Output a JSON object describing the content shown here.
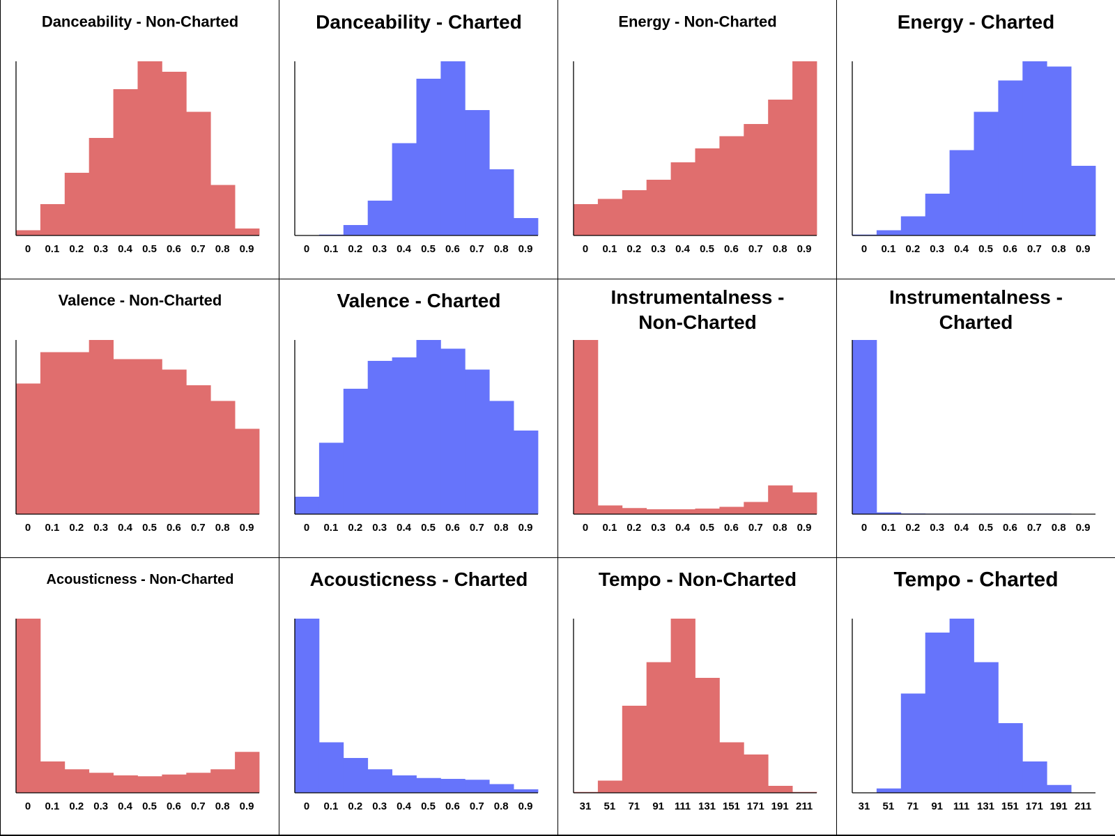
{
  "colors": {
    "non_charted": "#e06e6e",
    "charted": "#6674fb",
    "axis": "#000000"
  },
  "chart_data": [
    {
      "type": "bar",
      "title": "Danceability - Non-Charted",
      "color": "#e06e6e",
      "categories": [
        "0",
        "0.1",
        "0.2",
        "0.3",
        "0.4",
        "0.5",
        "0.6",
        "0.7",
        "0.8",
        "0.9"
      ],
      "values": [
        3,
        18,
        36,
        56,
        84,
        100,
        94,
        71,
        29,
        4
      ],
      "ylim": [
        0,
        100
      ]
    },
    {
      "type": "bar",
      "title": "Danceability - Charted",
      "color": "#6674fb",
      "categories": [
        "0",
        "0.1",
        "0.2",
        "0.3",
        "0.4",
        "0.5",
        "0.6",
        "0.7",
        "0.8",
        "0.9"
      ],
      "values": [
        0,
        0.5,
        6,
        20,
        53,
        90,
        100,
        72,
        38,
        10
      ],
      "ylim": [
        0,
        100
      ]
    },
    {
      "type": "bar",
      "title": "Energy - Non-Charted",
      "color": "#e06e6e",
      "categories": [
        "0",
        "0.1",
        "0.2",
        "0.3",
        "0.4",
        "0.5",
        "0.6",
        "0.7",
        "0.8",
        "0.9"
      ],
      "values": [
        18,
        21,
        26,
        32,
        42,
        50,
        57,
        64,
        78,
        100
      ],
      "ylim": [
        0,
        100
      ]
    },
    {
      "type": "bar",
      "title": "Energy - Charted",
      "color": "#6674fb",
      "categories": [
        "0",
        "0.1",
        "0.2",
        "0.3",
        "0.4",
        "0.5",
        "0.6",
        "0.7",
        "0.8",
        "0.9"
      ],
      "values": [
        0.5,
        3,
        11,
        24,
        49,
        71,
        89,
        100,
        97,
        40
      ],
      "ylim": [
        0,
        100
      ]
    },
    {
      "type": "bar",
      "title": "Valence - Non-Charted",
      "color": "#e06e6e",
      "categories": [
        "0",
        "0.1",
        "0.2",
        "0.3",
        "0.4",
        "0.5",
        "0.6",
        "0.7",
        "0.8",
        "0.9"
      ],
      "values": [
        75,
        93,
        93,
        100,
        89,
        89,
        83,
        74,
        65,
        49
      ],
      "ylim": [
        0,
        100
      ]
    },
    {
      "type": "bar",
      "title": "Valence - Charted",
      "color": "#6674fb",
      "categories": [
        "0",
        "0.1",
        "0.2",
        "0.3",
        "0.4",
        "0.5",
        "0.6",
        "0.7",
        "0.8",
        "0.9"
      ],
      "values": [
        10,
        41,
        72,
        88,
        90,
        100,
        95,
        83,
        65,
        48
      ],
      "ylim": [
        0,
        100
      ]
    },
    {
      "type": "bar",
      "title": "Instrumentalness - Non-Charted",
      "color": "#e06e6e",
      "categories": [
        "0",
        "0.1",
        "0.2",
        "0.3",
        "0.4",
        "0.5",
        "0.6",
        "0.7",
        "0.8",
        "0.9"
      ],
      "values": [
        100,
        5,
        3.5,
        2.8,
        2.8,
        3.2,
        4.2,
        7,
        16.5,
        12.5
      ],
      "ylim": [
        0,
        100
      ]
    },
    {
      "type": "bar",
      "title": "Instrumentalness - Charted",
      "color": "#6674fb",
      "categories": [
        "0",
        "0.1",
        "0.2",
        "0.3",
        "0.4",
        "0.5",
        "0.6",
        "0.7",
        "0.8",
        "0.9"
      ],
      "values": [
        100,
        1,
        0.4,
        0.3,
        0.3,
        0.3,
        0.3,
        0.3,
        0.3,
        0
      ],
      "ylim": [
        0,
        100
      ]
    },
    {
      "type": "bar",
      "title": "Acousticness - Non-Charted",
      "color": "#e06e6e",
      "categories": [
        "0",
        "0.1",
        "0.2",
        "0.3",
        "0.4",
        "0.5",
        "0.6",
        "0.7",
        "0.8",
        "0.9"
      ],
      "values": [
        100,
        18,
        13.5,
        11.5,
        10,
        9.5,
        10.5,
        11.5,
        13.5,
        23.5
      ],
      "ylim": [
        0,
        100
      ]
    },
    {
      "type": "bar",
      "title": "Acousticness - Charted",
      "color": "#6674fb",
      "categories": [
        "0",
        "0.1",
        "0.2",
        "0.3",
        "0.4",
        "0.5",
        "0.6",
        "0.7",
        "0.8",
        "0.9"
      ],
      "values": [
        100,
        29,
        20,
        13.5,
        10,
        8.5,
        8,
        7.5,
        5,
        2
      ],
      "ylim": [
        0,
        100
      ]
    },
    {
      "type": "bar",
      "title": "Tempo - Non-Charted",
      "color": "#e06e6e",
      "categories": [
        "31",
        "51",
        "71",
        "91",
        "111",
        "131",
        "151",
        "171",
        "191",
        "211"
      ],
      "values": [
        0.5,
        7,
        50,
        75,
        100,
        66,
        29,
        22,
        4,
        0.5
      ],
      "ylim": [
        0,
        100
      ]
    },
    {
      "type": "bar",
      "title": "Tempo - Charted",
      "color": "#6674fb",
      "categories": [
        "31",
        "51",
        "71",
        "91",
        "111",
        "131",
        "151",
        "171",
        "191",
        "211"
      ],
      "values": [
        0,
        2.5,
        57,
        92,
        100,
        75,
        40,
        18,
        4.5,
        0
      ],
      "ylim": [
        0,
        100
      ]
    }
  ]
}
